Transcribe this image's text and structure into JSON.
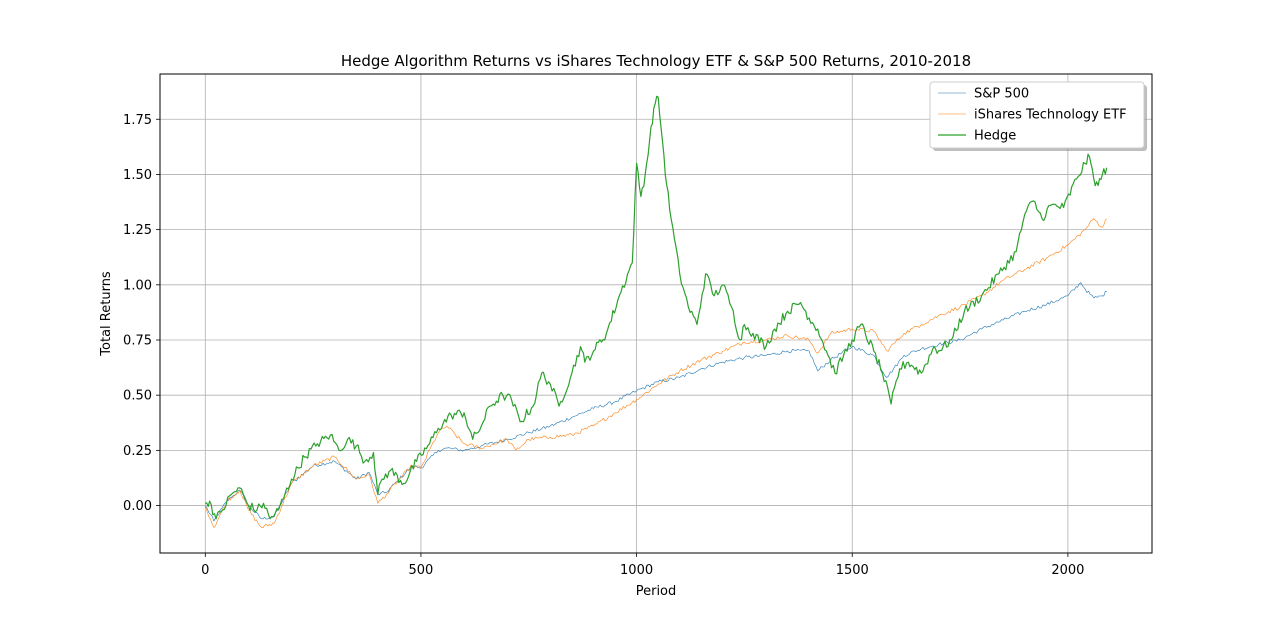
{
  "chart_data": {
    "type": "line",
    "title": "Hedge Algorithm Returns vs iShares Technology ETF & S&P 500 Returns, 2010-2018",
    "xlabel": "Period",
    "ylabel": "Total Returns",
    "xlim": [
      -105,
      2195
    ],
    "ylim": [
      -0.215,
      1.955
    ],
    "xticks": [
      0,
      500,
      1000,
      1500,
      2000
    ],
    "yticks": [
      0.0,
      0.25,
      0.5,
      0.75,
      1.0,
      1.25,
      1.5,
      1.75
    ],
    "xtick_labels": [
      "0",
      "500",
      "1000",
      "1500",
      "2000"
    ],
    "ytick_labels": [
      "0.00",
      "0.25",
      "0.50",
      "0.75",
      "1.00",
      "1.25",
      "1.50",
      "1.75"
    ],
    "grid": true,
    "legend_position": "top-right",
    "series": [
      {
        "name": "S&P 500",
        "color": "#1f77b4",
        "linewidth": 0.6,
        "x": [
          0,
          20,
          50,
          80,
          100,
          130,
          160,
          200,
          250,
          300,
          350,
          380,
          400,
          420,
          450,
          480,
          500,
          540,
          560,
          600,
          640,
          700,
          750,
          800,
          850,
          900,
          950,
          1000,
          1050,
          1100,
          1150,
          1200,
          1250,
          1300,
          1350,
          1400,
          1420,
          1450,
          1500,
          1550,
          1580,
          1620,
          1660,
          1700,
          1750,
          1800,
          1850,
          1900,
          1950,
          2000,
          2030,
          2040,
          2060,
          2080,
          2090
        ],
        "y": [
          0.0,
          -0.07,
          0.02,
          0.07,
          0.0,
          -0.06,
          -0.05,
          0.1,
          0.18,
          0.2,
          0.12,
          0.15,
          0.05,
          0.06,
          0.12,
          0.18,
          0.17,
          0.25,
          0.26,
          0.25,
          0.27,
          0.3,
          0.33,
          0.36,
          0.4,
          0.44,
          0.47,
          0.52,
          0.56,
          0.58,
          0.62,
          0.65,
          0.67,
          0.68,
          0.7,
          0.7,
          0.61,
          0.66,
          0.72,
          0.68,
          0.58,
          0.68,
          0.71,
          0.73,
          0.75,
          0.8,
          0.84,
          0.88,
          0.91,
          0.95,
          1.01,
          0.98,
          0.94,
          0.95,
          0.97
        ]
      },
      {
        "name": "iShares Technology ETF",
        "color": "#ff7f0e",
        "linewidth": 0.6,
        "x": [
          0,
          20,
          50,
          80,
          100,
          130,
          160,
          200,
          250,
          300,
          350,
          380,
          400,
          420,
          450,
          480,
          500,
          540,
          560,
          600,
          640,
          700,
          720,
          750,
          800,
          850,
          900,
          950,
          1000,
          1050,
          1100,
          1150,
          1200,
          1250,
          1300,
          1350,
          1400,
          1420,
          1450,
          1500,
          1550,
          1580,
          1620,
          1660,
          1700,
          1750,
          1800,
          1850,
          1900,
          1950,
          2000,
          2040,
          2060,
          2080,
          2090
        ],
        "y": [
          0.0,
          -0.1,
          0.02,
          0.07,
          -0.02,
          -0.1,
          -0.08,
          0.1,
          0.18,
          0.22,
          0.12,
          0.14,
          0.01,
          0.05,
          0.12,
          0.18,
          0.17,
          0.33,
          0.36,
          0.28,
          0.26,
          0.3,
          0.25,
          0.3,
          0.31,
          0.32,
          0.36,
          0.42,
          0.48,
          0.55,
          0.61,
          0.66,
          0.7,
          0.74,
          0.75,
          0.77,
          0.75,
          0.69,
          0.78,
          0.8,
          0.79,
          0.7,
          0.78,
          0.82,
          0.86,
          0.9,
          0.95,
          1.02,
          1.07,
          1.12,
          1.18,
          1.25,
          1.3,
          1.26,
          1.3
        ]
      },
      {
        "name": "Hedge",
        "color": "#2ca02c",
        "linewidth": 1.2,
        "x": [
          0,
          10,
          25,
          40,
          60,
          80,
          100,
          120,
          135,
          150,
          170,
          200,
          230,
          260,
          290,
          310,
          330,
          350,
          370,
          390,
          400,
          410,
          430,
          460,
          490,
          520,
          540,
          570,
          600,
          620,
          640,
          660,
          690,
          710,
          730,
          760,
          780,
          800,
          820,
          850,
          870,
          880,
          900,
          930,
          960,
          990,
          1000,
          1010,
          1020,
          1030,
          1040,
          1050,
          1060,
          1070,
          1080,
          1100,
          1120,
          1140,
          1160,
          1180,
          1200,
          1220,
          1240,
          1250,
          1270,
          1300,
          1320,
          1350,
          1380,
          1400,
          1420,
          1440,
          1460,
          1480,
          1500,
          1520,
          1550,
          1570,
          1590,
          1610,
          1630,
          1660,
          1690,
          1700,
          1730,
          1760,
          1800,
          1840,
          1880,
          1900,
          1920,
          1940,
          1960,
          1990,
          2020,
          2040,
          2050,
          2060,
          2070,
          2080,
          2090
        ],
        "y": [
          0.01,
          0.02,
          -0.06,
          -0.02,
          0.05,
          0.08,
          0.0,
          -0.02,
          0.01,
          -0.06,
          -0.02,
          0.12,
          0.22,
          0.28,
          0.32,
          0.25,
          0.3,
          0.27,
          0.2,
          0.24,
          0.05,
          0.12,
          0.16,
          0.1,
          0.2,
          0.28,
          0.35,
          0.41,
          0.42,
          0.3,
          0.36,
          0.45,
          0.5,
          0.48,
          0.38,
          0.45,
          0.6,
          0.55,
          0.45,
          0.6,
          0.72,
          0.65,
          0.7,
          0.78,
          0.95,
          1.1,
          1.55,
          1.4,
          1.5,
          1.65,
          1.8,
          1.85,
          1.65,
          1.45,
          1.3,
          1.05,
          0.9,
          0.82,
          1.05,
          0.95,
          1.0,
          0.9,
          0.75,
          0.82,
          0.78,
          0.72,
          0.8,
          0.88,
          0.92,
          0.85,
          0.8,
          0.7,
          0.6,
          0.68,
          0.75,
          0.82,
          0.7,
          0.6,
          0.46,
          0.62,
          0.65,
          0.6,
          0.72,
          0.7,
          0.75,
          0.88,
          0.95,
          1.05,
          1.15,
          1.32,
          1.38,
          1.3,
          1.36,
          1.35,
          1.48,
          1.55,
          1.58,
          1.48,
          1.45,
          1.5,
          1.53
        ]
      }
    ]
  }
}
